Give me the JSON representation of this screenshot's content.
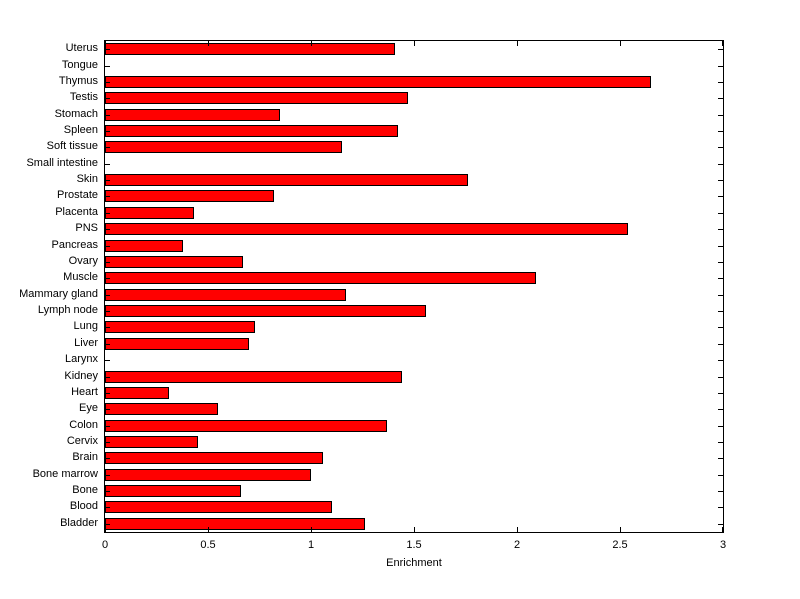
{
  "chart_data": {
    "type": "bar",
    "orientation": "horizontal",
    "title": "",
    "xlabel": "Enrichment",
    "ylabel": "",
    "xlim": [
      0,
      3
    ],
    "xticks": [
      0,
      0.5,
      1,
      1.5,
      2,
      2.5,
      3
    ],
    "xtick_labels": [
      "0",
      "0.5",
      "1",
      "1.5",
      "2",
      "2.5",
      "3"
    ],
    "grid": false,
    "legend": null,
    "bar_color": "#ff0000",
    "bar_edge_color": "#000000",
    "categories": [
      "Uterus",
      "Tongue",
      "Thymus",
      "Testis",
      "Stomach",
      "Spleen",
      "Soft tissue",
      "Small intestine",
      "Skin",
      "Prostate",
      "Placenta",
      "PNS",
      "Pancreas",
      "Ovary",
      "Muscle",
      "Mammary gland",
      "Lymph node",
      "Lung",
      "Liver",
      "Larynx",
      "Kidney",
      "Heart",
      "Eye",
      "Colon",
      "Cervix",
      "Brain",
      "Bone marrow",
      "Bone",
      "Blood",
      "Bladder"
    ],
    "values": [
      1.41,
      0,
      2.65,
      1.47,
      0.85,
      1.42,
      1.15,
      0,
      1.76,
      0.82,
      0.43,
      2.54,
      0.38,
      0.67,
      2.09,
      1.17,
      1.56,
      0.73,
      0.7,
      0,
      1.44,
      0.31,
      0.55,
      1.37,
      0.45,
      1.06,
      1.0,
      0.66,
      1.1,
      1.26
    ]
  }
}
